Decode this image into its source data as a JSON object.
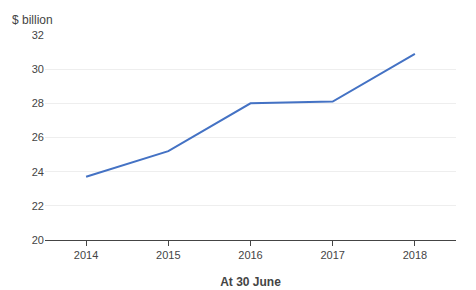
{
  "chart_data": {
    "type": "line",
    "x": [
      2014,
      2015,
      2016,
      2017,
      2018
    ],
    "values": [
      23.7,
      25.2,
      28.0,
      28.1,
      30.9
    ],
    "color": "#4472C4",
    "xlabel": "At 30 June",
    "ylabel": "$ billion",
    "xlim": [
      2013.5,
      2018.5
    ],
    "xticks": [
      2014,
      2015,
      2016,
      2017,
      2018
    ],
    "ylim": [
      20,
      32
    ],
    "yticks": [
      20,
      22,
      24,
      26,
      28,
      30,
      32
    ],
    "grid": true
  }
}
